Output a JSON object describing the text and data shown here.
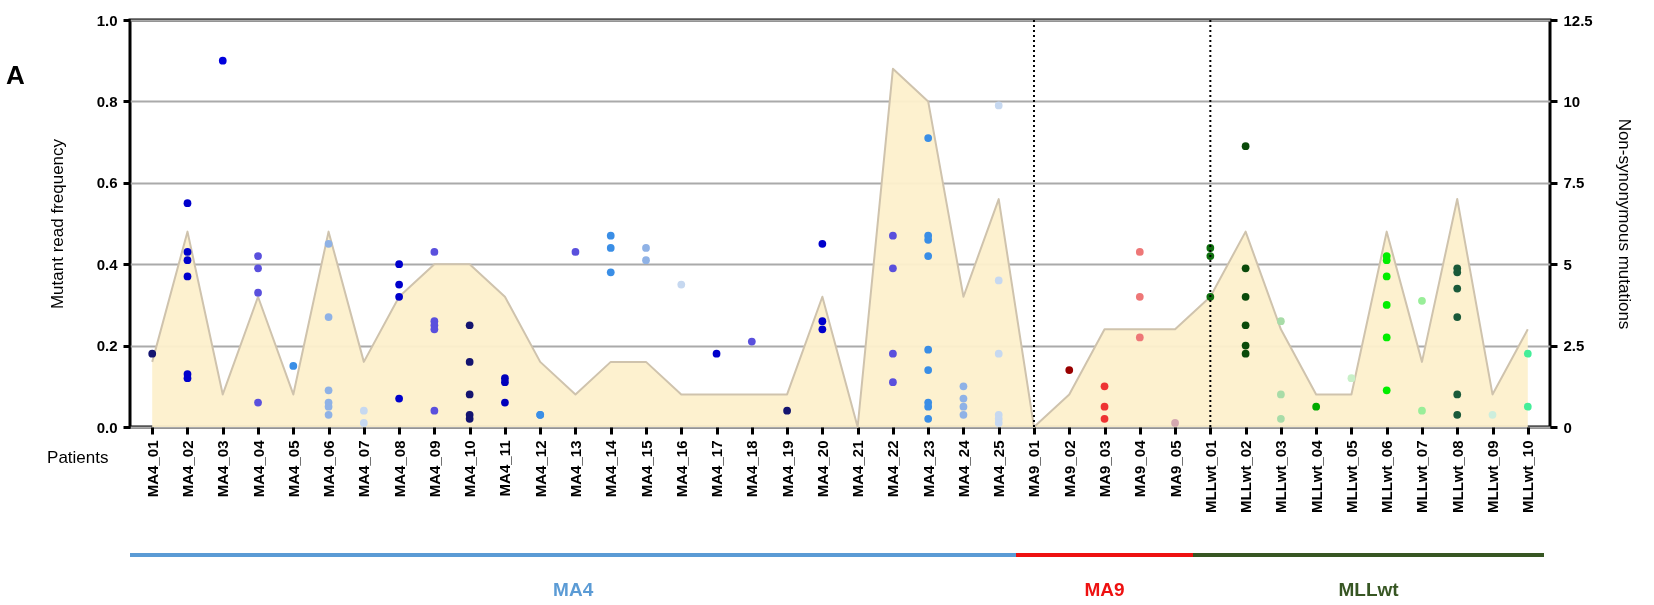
{
  "chart_data": {
    "type": "scatter",
    "title": "A",
    "xlabel": "Patients",
    "ylabel": "Mutant read frequency",
    "y2label": "Non-synonymous mutations",
    "categories": [
      "MA4_01",
      "MA4_02",
      "MA4_03",
      "MA4_04",
      "MA4_05",
      "MA4_06",
      "MA4_07",
      "MA4_08",
      "MA4_09",
      "MA4_10",
      "MA4_11",
      "MA4_12",
      "MA4_13",
      "MA4_14",
      "MA4_15",
      "MA4_16",
      "MA4_17",
      "MA4_18",
      "MA4_19",
      "MA4_20",
      "MA4_21",
      "MA4_22",
      "MA4_23",
      "MA4_24",
      "MA4_25",
      "MA9_01",
      "MA9_02",
      "MA9_03",
      "MA9_04",
      "MA9_05",
      "MLLwt_01",
      "MLLwt_02",
      "MLLwt_03",
      "MLLwt_04",
      "MLLwt_05",
      "MLLwt_06",
      "MLLwt_07",
      "MLLwt_08",
      "MLLwt_09",
      "MLLwt_10"
    ],
    "series": [
      {
        "type": "area",
        "axis": "y2",
        "color": "#fdf0cc",
        "values": [
          2,
          6,
          1,
          4,
          1,
          6,
          2,
          4,
          5,
          5,
          4,
          2,
          1,
          2,
          2,
          1,
          1,
          1,
          1,
          4,
          0,
          11,
          10,
          4,
          7,
          0,
          1,
          3,
          3,
          3,
          4,
          6,
          3,
          1,
          1,
          6,
          2,
          7,
          1,
          3
        ]
      },
      {
        "marker": "circle",
        "x": [
          "MA4_01",
          "MA4_02",
          "MA4_02",
          "MA4_02",
          "MA4_02",
          "MA4_02",
          "MA4_02",
          "MA4_03",
          "MA4_04",
          "MA4_04",
          "MA4_04",
          "MA4_04",
          "MA4_05",
          "MA4_06",
          "MA4_06",
          "MA4_06",
          "MA4_06",
          "MA4_06",
          "MA4_06",
          "MA4_07",
          "MA4_07",
          "MA4_08",
          "MA4_08",
          "MA4_08",
          "MA4_08",
          "MA4_09",
          "MA4_09",
          "MA4_09",
          "MA4_09",
          "MA4_09",
          "MA4_10",
          "MA4_10",
          "MA4_10",
          "MA4_10",
          "MA4_10",
          "MA4_11",
          "MA4_11",
          "MA4_11",
          "MA4_12",
          "MA4_12",
          "MA4_13",
          "MA4_14",
          "MA4_14",
          "MA4_14",
          "MA4_15",
          "MA4_15",
          "MA4_16",
          "MA4_17",
          "MA4_18",
          "MA4_19",
          "MA4_20",
          "MA4_20",
          "MA4_20",
          "MA4_22",
          "MA4_22",
          "MA4_22",
          "MA4_22",
          "MA4_23",
          "MA4_23",
          "MA4_23",
          "MA4_23",
          "MA4_23",
          "MA4_23",
          "MA4_23",
          "MA4_23",
          "MA4_23",
          "MA4_24",
          "MA4_24",
          "MA4_24",
          "MA4_24",
          "MA4_25",
          "MA4_25",
          "MA4_25",
          "MA4_25",
          "MA4_25",
          "MA4_25",
          "MA9_02",
          "MA9_03",
          "MA9_03",
          "MA9_03",
          "MA9_04",
          "MA9_04",
          "MA9_04",
          "MA9_05",
          "MLLwt_01",
          "MLLwt_01",
          "MLLwt_01",
          "MLLwt_02",
          "MLLwt_02",
          "MLLwt_02",
          "MLLwt_02",
          "MLLwt_02",
          "MLLwt_02",
          "MLLwt_03",
          "MLLwt_03",
          "MLLwt_03",
          "MLLwt_04",
          "MLLwt_05",
          "MLLwt_06",
          "MLLwt_06",
          "MLLwt_06",
          "MLLwt_06",
          "MLLwt_06",
          "MLLwt_06",
          "MLLwt_07",
          "MLLwt_07",
          "MLLwt_08",
          "MLLwt_08",
          "MLLwt_08",
          "MLLwt_08",
          "MLLwt_08",
          "MLLwt_08",
          "MLLwt_09",
          "MLLwt_10",
          "MLLwt_10"
        ],
        "values": [
          0.18,
          0.55,
          0.43,
          0.41,
          0.37,
          0.13,
          0.12,
          0.9,
          0.42,
          0.39,
          0.33,
          0.06,
          0.15,
          0.45,
          0.27,
          0.09,
          0.06,
          0.05,
          0.03,
          0.04,
          0.01,
          0.4,
          0.35,
          0.32,
          0.07,
          0.43,
          0.26,
          0.25,
          0.24,
          0.04,
          0.25,
          0.16,
          0.08,
          0.03,
          0.02,
          0.12,
          0.11,
          0.06,
          0.03,
          0.03,
          0.43,
          0.47,
          0.44,
          0.38,
          0.44,
          0.41,
          0.35,
          0.18,
          0.21,
          0.04,
          0.45,
          0.26,
          0.24,
          0.47,
          0.39,
          0.18,
          0.11,
          0.71,
          0.47,
          0.46,
          0.42,
          0.19,
          0.14,
          0.06,
          0.05,
          0.02,
          0.1,
          0.07,
          0.05,
          0.03,
          0.79,
          0.36,
          0.18,
          0.03,
          0.02,
          0.01,
          0.14,
          0.1,
          0.05,
          0.02,
          0.43,
          0.32,
          0.22,
          0.01,
          0.44,
          0.42,
          0.32,
          0.69,
          0.39,
          0.32,
          0.25,
          0.2,
          0.18,
          0.26,
          0.08,
          0.02,
          0.05,
          0.12,
          0.42,
          0.41,
          0.37,
          0.3,
          0.22,
          0.09,
          0.31,
          0.04,
          0.39,
          0.38,
          0.34,
          0.27,
          0.08,
          0.03,
          0.03,
          0.18,
          0.05
        ],
        "colors": [
          "#141470",
          "#0000cc",
          "#0000cc",
          "#0000cc",
          "#0000cc",
          "#0000cc",
          "#0000cc",
          "#0000dd",
          "#5a50dd",
          "#5a50dd",
          "#5a50dd",
          "#5a50dd",
          "#3a8ee6",
          "#8fb2e6",
          "#8fb2e6",
          "#8fb2e6",
          "#8fb2e6",
          "#8fb2e6",
          "#8fb2e6",
          "#c6d8f0",
          "#c6d8f0",
          "#0000cc",
          "#0000cc",
          "#0000cc",
          "#0000cc",
          "#5a50dd",
          "#5a50dd",
          "#5a50dd",
          "#5a50dd",
          "#5a50dd",
          "#141470",
          "#141470",
          "#141470",
          "#141470",
          "#141470",
          "#0000bb",
          "#0000bb",
          "#0000bb",
          "#3a8ee6",
          "#3a8ee6",
          "#5a50dd",
          "#3a8ee6",
          "#3a8ee6",
          "#3a8ee6",
          "#8fb2e6",
          "#8fb2e6",
          "#c6d8f0",
          "#0000cc",
          "#5a50dd",
          "#141470",
          "#0000cc",
          "#0000cc",
          "#0000cc",
          "#5a50dd",
          "#5a50dd",
          "#5a50dd",
          "#5a50dd",
          "#3a8ee6",
          "#3a8ee6",
          "#3a8ee6",
          "#3a8ee6",
          "#3a8ee6",
          "#3a8ee6",
          "#3a8ee6",
          "#3a8ee6",
          "#3a8ee6",
          "#8fb2e6",
          "#8fb2e6",
          "#8fb2e6",
          "#8fb2e6",
          "#c6d8f0",
          "#c6d8f0",
          "#c6d8f0",
          "#c6d8f0",
          "#c6d8f0",
          "#c6d8f0",
          "#990000",
          "#ee3333",
          "#ee3333",
          "#ee3333",
          "#ee7777",
          "#ee7777",
          "#ee7777",
          "#d4a8b0",
          "#0e6e0e",
          "#0e6e0e",
          "#0e6e0e",
          "#0a4a0a",
          "#0a4a0a",
          "#0a4a0a",
          "#0a4a0a",
          "#0a4a0a",
          "#0a4a0a",
          "#a8dca8",
          "#a8dca8",
          "#a8dca8",
          "#00aa00",
          "#c8f0c8",
          "#00ee00",
          "#00ee00",
          "#00ee00",
          "#00ee00",
          "#00ee00",
          "#00ee00",
          "#99ee99",
          "#99ee99",
          "#1a5a3a",
          "#1a5a3a",
          "#1a5a3a",
          "#1a5a3a",
          "#1a5a3a",
          "#1a5a3a",
          "#cceedd",
          "#44ee99",
          "#44ee99"
        ]
      }
    ],
    "ylim": [
      0,
      1
    ],
    "yticks": [
      {
        "value": 0,
        "label": "0.0"
      },
      0.2,
      0.4,
      0.6,
      0.8,
      {
        "value": 1,
        "label": "1.0"
      }
    ],
    "y2lim": [
      0,
      12.5
    ],
    "y2ticks": [
      0,
      2.5,
      5,
      7.5,
      10,
      12.5
    ],
    "grid": "y",
    "ref_lines": [
      {
        "axis": "x",
        "value": "MA9_01",
        "line_style": "dotted"
      },
      {
        "axis": "x",
        "value": "MLLwt_01",
        "line_style": "dotted"
      }
    ],
    "annotations": [
      "MA4",
      "MA9",
      "MLLwt"
    ]
  }
}
